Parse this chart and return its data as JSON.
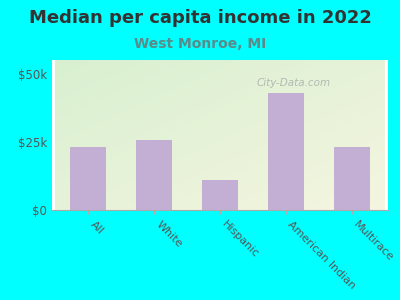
{
  "title": "Median per capita income in 2022",
  "subtitle": "West Monroe, MI",
  "categories": [
    "All",
    "White",
    "Hispanic",
    "American Indian",
    "Multirace"
  ],
  "values": [
    23000,
    25500,
    11000,
    43000,
    23000
  ],
  "bar_color": "#c4afd4",
  "background_outer": "#00ffff",
  "background_inner_topleft": "#d8f0d0",
  "background_inner_bottomright": "#f0f0e0",
  "title_color": "#333333",
  "subtitle_color": "#5b8a8a",
  "tick_color": "#555555",
  "ylim": [
    0,
    55000
  ],
  "yticks": [
    0,
    25000,
    50000
  ],
  "ytick_labels": [
    "$0",
    "$25k",
    "$50k"
  ],
  "watermark": "City-Data.com",
  "title_fontsize": 13,
  "subtitle_fontsize": 10
}
